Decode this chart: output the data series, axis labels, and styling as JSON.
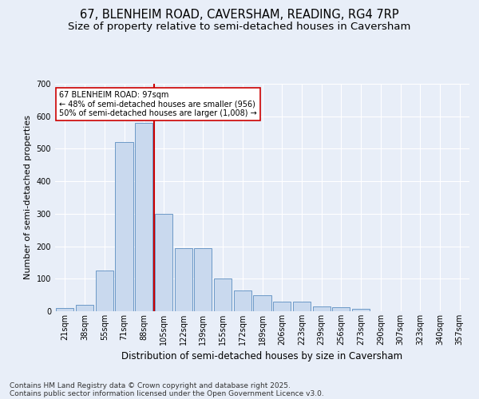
{
  "title_line1": "67, BLENHEIM ROAD, CAVERSHAM, READING, RG4 7RP",
  "title_line2": "Size of property relative to semi-detached houses in Caversham",
  "xlabel": "Distribution of semi-detached houses by size in Caversham",
  "ylabel": "Number of semi-detached properties",
  "categories": [
    "21sqm",
    "38sqm",
    "55sqm",
    "71sqm",
    "88sqm",
    "105sqm",
    "122sqm",
    "139sqm",
    "155sqm",
    "172sqm",
    "189sqm",
    "206sqm",
    "223sqm",
    "239sqm",
    "256sqm",
    "273sqm",
    "290sqm",
    "307sqm",
    "323sqm",
    "340sqm",
    "357sqm"
  ],
  "values": [
    10,
    20,
    125,
    520,
    580,
    300,
    195,
    195,
    100,
    65,
    50,
    30,
    30,
    15,
    12,
    8,
    0,
    0,
    0,
    0,
    0
  ],
  "bar_color": "#c9d9ee",
  "bar_edge_color": "#5b8dc0",
  "vline_x_index": 4.5,
  "vline_color": "#cc0000",
  "annotation_text_line1": "67 BLENHEIM ROAD: 97sqm",
  "annotation_text_line2": "← 48% of semi-detached houses are smaller (956)",
  "annotation_text_line3": "50% of semi-detached houses are larger (1,008) →",
  "annotation_box_facecolor": "#ffffff",
  "annotation_box_edgecolor": "#cc0000",
  "ylim": [
    0,
    700
  ],
  "yticks": [
    0,
    100,
    200,
    300,
    400,
    500,
    600,
    700
  ],
  "bg_color": "#e8eef8",
  "plot_bg_color": "#e8eef8",
  "grid_color": "#ffffff",
  "footer_line1": "Contains HM Land Registry data © Crown copyright and database right 2025.",
  "footer_line2": "Contains public sector information licensed under the Open Government Licence v3.0.",
  "title_fontsize": 10.5,
  "subtitle_fontsize": 9.5,
  "tick_fontsize": 7,
  "xlabel_fontsize": 8.5,
  "ylabel_fontsize": 8,
  "annotation_fontsize": 7,
  "footer_fontsize": 6.5
}
